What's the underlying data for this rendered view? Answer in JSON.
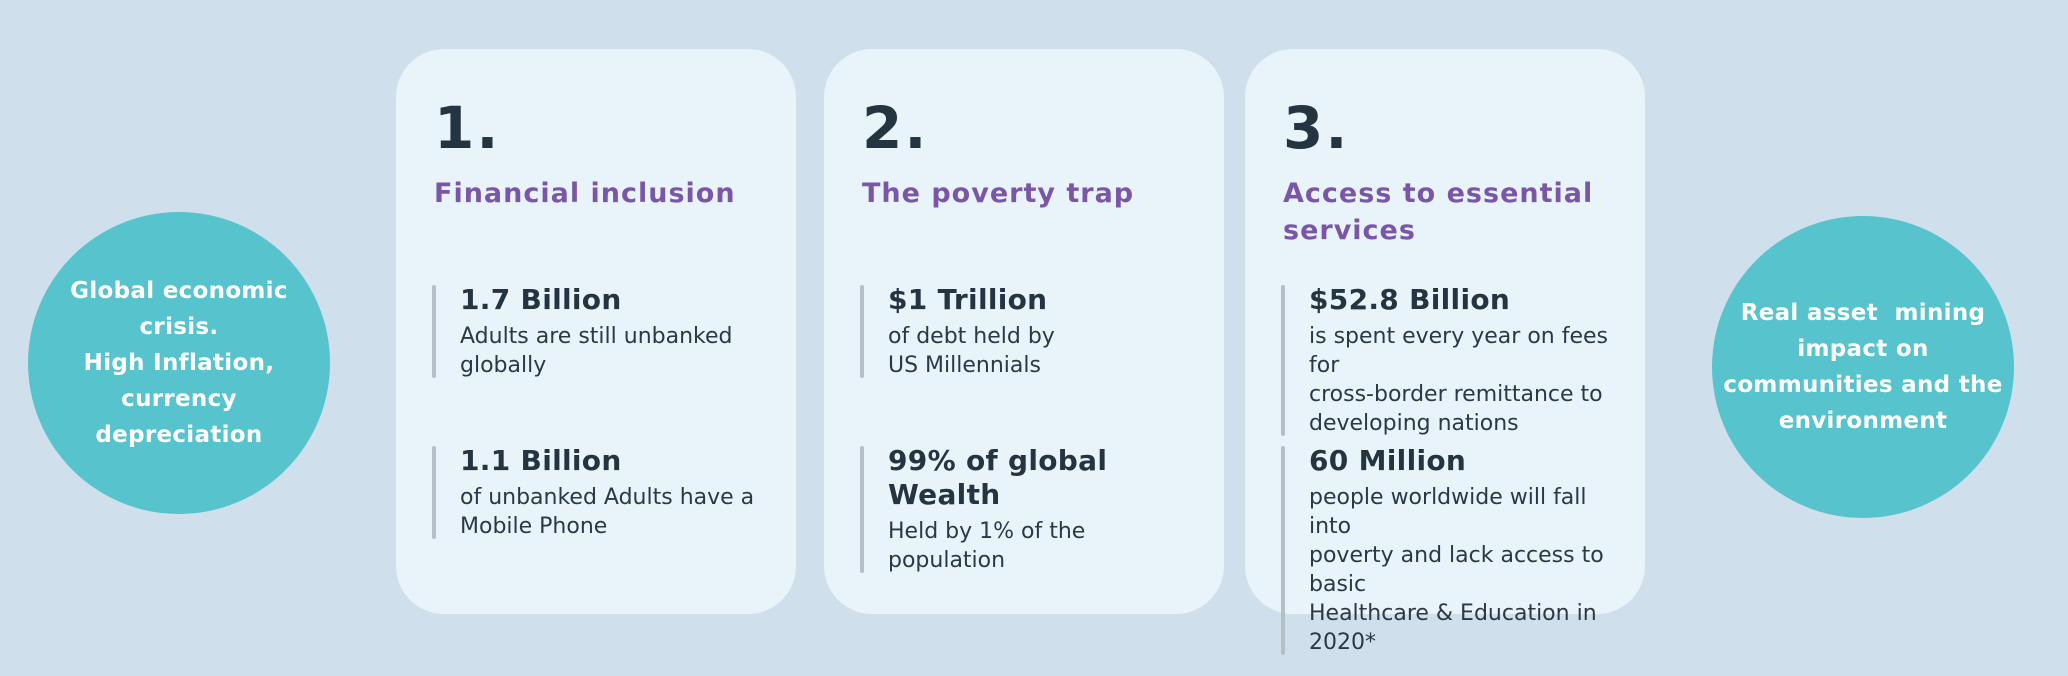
{
  "colors": {
    "page_background": "#cfe0ec",
    "card_background": "#e8f3fa",
    "bubble_teal": "#57c3cd",
    "heading_purple": "#7b56a7",
    "text_dark_navy": "#243441",
    "stat_bar_gray": "#b4bfc7",
    "bubble_text_white": "#ffffff"
  },
  "left_circle": {
    "text": "Global economic\ncrisis.\nHigh Inflation,\ncurrency\ndepreciation"
  },
  "right_circle": {
    "text": "Real asset  mining\nimpact on\ncommunities and the\nenvironment"
  },
  "cards": [
    {
      "number": "1.",
      "heading": "Financial inclusion",
      "stats": [
        {
          "value": "1.7 Billion",
          "description": "Adults are still unbanked\nglobally"
        },
        {
          "value": "1.1 Billion",
          "description": "of unbanked Adults have a\nMobile Phone"
        }
      ]
    },
    {
      "number": "2.",
      "heading": "The poverty trap",
      "stats": [
        {
          "value": "$1 Trillion",
          "description": "of debt held by\nUS Millennials"
        },
        {
          "value": "99% of global Wealth",
          "description": "Held by 1% of the\npopulation"
        }
      ]
    },
    {
      "number": "3.",
      "heading": "Access to essential\nservices",
      "stats": [
        {
          "value": "$52.8 Billion",
          "description": "is spent every year on fees for\ncross-border remittance to\ndeveloping nations"
        },
        {
          "value": "60 Million",
          "description": "people worldwide will fall into\npoverty and lack access to basic\nHealthcare & Education in 2020*"
        }
      ]
    }
  ]
}
